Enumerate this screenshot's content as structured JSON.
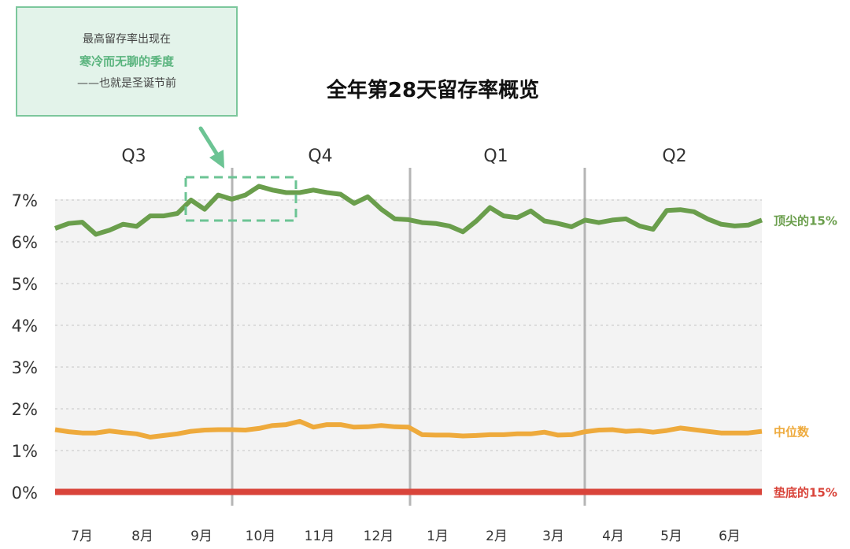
{
  "callout": {
    "line1": "最高留存率出现在",
    "line2": "寒冷而无聊的季度",
    "line3": "——也就是圣诞节前"
  },
  "colors": {
    "top": "#6a9e4c",
    "median": "#eeaa3c",
    "bottom": "#d9443a",
    "callout_accent": "#6cc494",
    "plot_bg": "#f3f3f3"
  },
  "chart_data": {
    "type": "line",
    "title": "全年第28天留存率概览",
    "ylabel": "",
    "xlabel": "",
    "ylim": [
      0,
      7
    ],
    "yticks": [
      "0%",
      "1%",
      "2%",
      "3%",
      "4%",
      "5%",
      "6%",
      "7%"
    ],
    "months": [
      "7月",
      "8月",
      "9月",
      "10月",
      "11月",
      "12月",
      "1月",
      "2月",
      "3月",
      "4月",
      "5月",
      "6月"
    ],
    "quarters": [
      "Q3",
      "Q4",
      "Q1",
      "Q2"
    ],
    "grid": true,
    "series": [
      {
        "name": "顶尖的15%",
        "values": [
          6.32,
          6.44,
          6.47,
          6.18,
          6.28,
          6.42,
          6.37,
          6.62,
          6.62,
          6.68,
          7.0,
          6.78,
          7.12,
          7.02,
          7.12,
          7.33,
          7.24,
          7.18,
          7.18,
          7.24,
          7.18,
          7.14,
          6.92,
          7.08,
          6.78,
          6.55,
          6.53,
          6.46,
          6.44,
          6.38,
          6.24,
          6.5,
          6.82,
          6.62,
          6.58,
          6.74,
          6.5,
          6.44,
          6.36,
          6.52,
          6.46,
          6.52,
          6.55,
          6.38,
          6.3,
          6.75,
          6.77,
          6.72,
          6.55,
          6.42,
          6.38,
          6.4,
          6.52
        ]
      },
      {
        "name": "中位数",
        "values": [
          1.5,
          1.45,
          1.42,
          1.42,
          1.47,
          1.43,
          1.4,
          1.32,
          1.36,
          1.4,
          1.46,
          1.49,
          1.5,
          1.5,
          1.49,
          1.53,
          1.6,
          1.62,
          1.7,
          1.56,
          1.62,
          1.62,
          1.56,
          1.57,
          1.6,
          1.57,
          1.56,
          1.38,
          1.37,
          1.37,
          1.35,
          1.36,
          1.38,
          1.38,
          1.4,
          1.4,
          1.44,
          1.37,
          1.38,
          1.45,
          1.49,
          1.5,
          1.46,
          1.48,
          1.44,
          1.48,
          1.54,
          1.5,
          1.46,
          1.42,
          1.42,
          1.42,
          1.46
        ]
      },
      {
        "name": "垫底的15%",
        "values": [
          0.01,
          0.01,
          0.01,
          0.01,
          0.01,
          0.01,
          0.01,
          0.01,
          0.01,
          0.01,
          0.01,
          0.01,
          0.01,
          0.01,
          0.01,
          0.01,
          0.01,
          0.01,
          0.01,
          0.01,
          0.01,
          0.01,
          0.01,
          0.01,
          0.01,
          0.01,
          0.01,
          0.01,
          0.01,
          0.01,
          0.01,
          0.01,
          0.01,
          0.01,
          0.01,
          0.01,
          0.01,
          0.01,
          0.01,
          0.01,
          0.01,
          0.01,
          0.01,
          0.01,
          0.01,
          0.01,
          0.01,
          0.01,
          0.01,
          0.01,
          0.01,
          0.01,
          0.01
        ]
      }
    ]
  }
}
